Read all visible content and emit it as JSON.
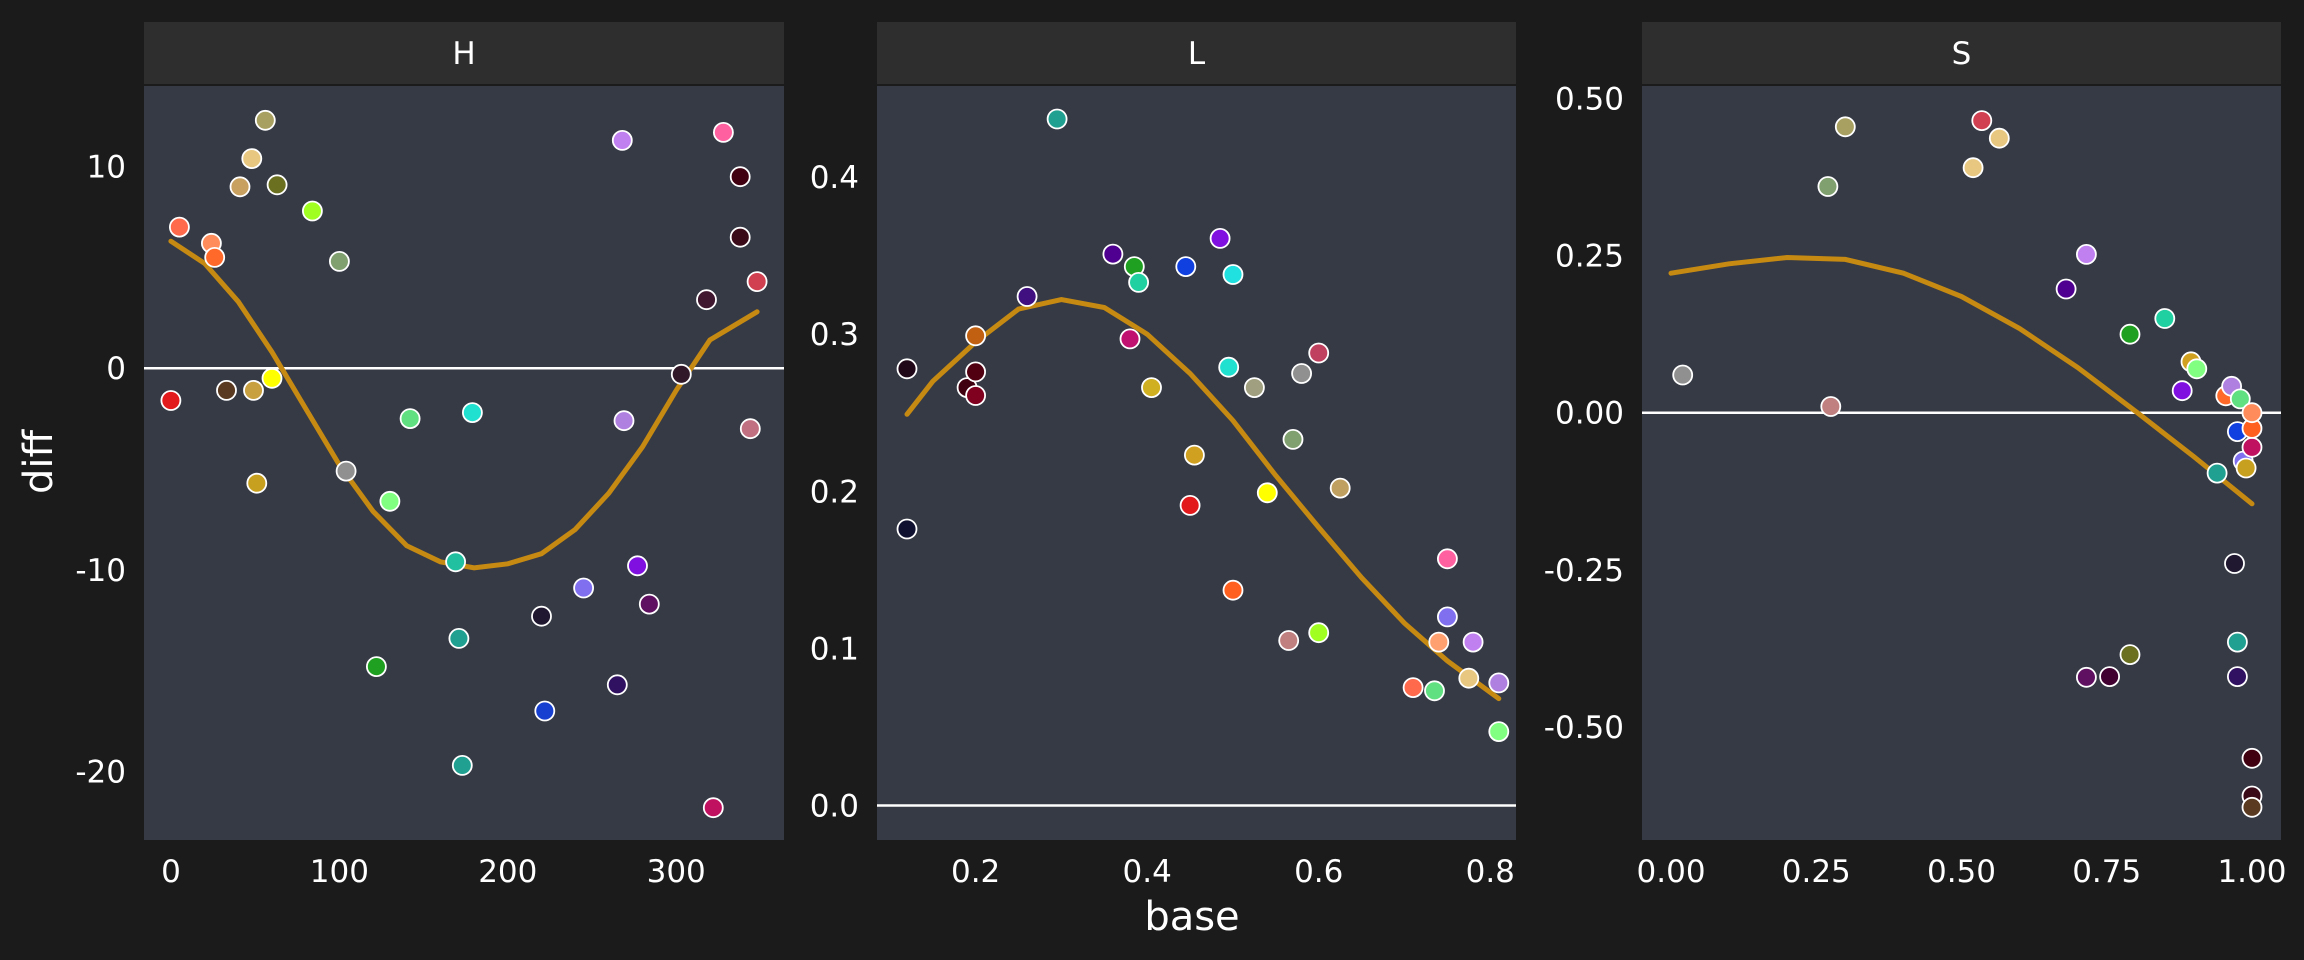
{
  "chart_data": {
    "type": "scatter",
    "xlabel": "base",
    "ylabel": "diff",
    "colors": {
      "background": "#1b1b1b",
      "panel": "#363a45",
      "strip": "#2e2e2e",
      "zero_line": "#ffffff",
      "smooth": "#c68a12",
      "point_stroke": "#ffffff"
    },
    "panels": [
      {
        "name": "H",
        "xlim": [
          -16,
          364
        ],
        "ylim": [
          -23.4,
          14
        ],
        "xticks": [
          0,
          100,
          200,
          300
        ],
        "xtick_labels": [
          "0",
          "100",
          "200",
          "300"
        ],
        "yticks": [
          -20,
          -10,
          0,
          10
        ],
        "ytick_labels": [
          "-20",
          "-10",
          "0",
          "10"
        ],
        "smooth": [
          [
            0,
            6.3
          ],
          [
            20,
            5.2
          ],
          [
            40,
            3.3
          ],
          [
            60,
            0.8
          ],
          [
            80,
            -2.0
          ],
          [
            100,
            -4.8
          ],
          [
            120,
            -7.1
          ],
          [
            140,
            -8.8
          ],
          [
            160,
            -9.6
          ],
          [
            180,
            -9.9
          ],
          [
            200,
            -9.7
          ],
          [
            220,
            -9.2
          ],
          [
            240,
            -8.0
          ],
          [
            260,
            -6.2
          ],
          [
            280,
            -3.9
          ],
          [
            300,
            -1.1
          ],
          [
            320,
            1.4
          ],
          [
            348,
            2.8
          ]
        ],
        "points": [
          [
            0,
            -1.6,
            "#e31a1c"
          ],
          [
            5,
            7,
            "#ff6a4d"
          ],
          [
            24,
            6.2,
            "#ff8c5a"
          ],
          [
            26,
            5.5,
            "#ff6a2a"
          ],
          [
            33,
            -1.1,
            "#5a3a20"
          ],
          [
            41,
            9,
            "#c8a060"
          ],
          [
            48,
            10.4,
            "#e8c880"
          ],
          [
            49,
            -1.1,
            "#c8a040"
          ],
          [
            51,
            -5.7,
            "#c8a020"
          ],
          [
            56,
            12.3,
            "#a8a060"
          ],
          [
            60,
            -0.5,
            "#ffff00"
          ],
          [
            63,
            9.1,
            "#6a7020"
          ],
          [
            84,
            7.8,
            "#a0ff20"
          ],
          [
            100,
            5.3,
            "#80a070"
          ],
          [
            104,
            -5.1,
            "#909090"
          ],
          [
            122,
            -14.8,
            "#20a020"
          ],
          [
            130,
            -6.6,
            "#80ff80"
          ],
          [
            142,
            -2.5,
            "#60e080"
          ],
          [
            169,
            -9.6,
            "#20c0a0"
          ],
          [
            171,
            -13.4,
            "#20a090"
          ],
          [
            173,
            -19.7,
            "#20a090"
          ],
          [
            179,
            -2.2,
            "#20e0d0"
          ],
          [
            220,
            -12.3,
            "#201830"
          ],
          [
            222,
            -17,
            "#1840d0"
          ],
          [
            245,
            -10.9,
            "#8070f0"
          ],
          [
            265,
            -15.7,
            "#301060"
          ],
          [
            268,
            11.3,
            "#c080f0"
          ],
          [
            269,
            -2.6,
            "#b080e0"
          ],
          [
            277,
            -9.8,
            "#8010e0"
          ],
          [
            284,
            -11.7,
            "#601060"
          ],
          [
            303,
            -0.3,
            "#301828"
          ],
          [
            318,
            3.4,
            "#401830"
          ],
          [
            322,
            -21.8,
            "#c01060"
          ],
          [
            328,
            11.7,
            "#ff60a0"
          ],
          [
            338,
            9.5,
            "#400010"
          ],
          [
            338,
            6.5,
            "#3a0a18"
          ],
          [
            344,
            -3.0,
            "#c07080"
          ],
          [
            348,
            4.3,
            "#d04050"
          ]
        ]
      },
      {
        "name": "L",
        "xlim": [
          0.085,
          0.83
        ],
        "ylim": [
          -0.022,
          0.458
        ],
        "xticks": [
          0.2,
          0.4,
          0.6,
          0.8
        ],
        "xtick_labels": [
          "0.2",
          "0.4",
          "0.6",
          "0.8"
        ],
        "yticks": [
          0.0,
          0.1,
          0.2,
          0.3,
          0.4
        ],
        "ytick_labels": [
          "0.0",
          "0.1",
          "0.2",
          "0.3",
          "0.4"
        ],
        "smooth": [
          [
            0.12,
            0.249
          ],
          [
            0.15,
            0.27
          ],
          [
            0.2,
            0.295
          ],
          [
            0.25,
            0.316
          ],
          [
            0.3,
            0.322
          ],
          [
            0.35,
            0.317
          ],
          [
            0.4,
            0.3
          ],
          [
            0.45,
            0.275
          ],
          [
            0.5,
            0.245
          ],
          [
            0.55,
            0.21
          ],
          [
            0.6,
            0.177
          ],
          [
            0.65,
            0.145
          ],
          [
            0.7,
            0.116
          ],
          [
            0.75,
            0.092
          ],
          [
            0.81,
            0.068
          ]
        ],
        "points": [
          [
            0.12,
            0.176,
            "#101030"
          ],
          [
            0.12,
            0.278,
            "#200818"
          ],
          [
            0.19,
            0.266,
            "#400010"
          ],
          [
            0.2,
            0.299,
            "#c06010"
          ],
          [
            0.2,
            0.261,
            "#800020"
          ],
          [
            0.2,
            0.276,
            "#500010"
          ],
          [
            0.26,
            0.324,
            "#401080"
          ],
          [
            0.295,
            0.437,
            "#20a090"
          ],
          [
            0.36,
            0.351,
            "#500090"
          ],
          [
            0.38,
            0.297,
            "#c01070"
          ],
          [
            0.385,
            0.343,
            "#20a020"
          ],
          [
            0.39,
            0.333,
            "#20d0a0"
          ],
          [
            0.405,
            0.266,
            "#d0b020"
          ],
          [
            0.445,
            0.343,
            "#1040e0"
          ],
          [
            0.45,
            0.191,
            "#e31a1c"
          ],
          [
            0.455,
            0.223,
            "#d0a020"
          ],
          [
            0.485,
            0.361,
            "#8010e0"
          ],
          [
            0.495,
            0.279,
            "#20e0d0"
          ],
          [
            0.5,
            0.338,
            "#20e0e0"
          ],
          [
            0.5,
            0.137,
            "#ff6020"
          ],
          [
            0.525,
            0.266,
            "#a0a080"
          ],
          [
            0.54,
            0.199,
            "#ffff00"
          ],
          [
            0.565,
            0.105,
            "#c08080"
          ],
          [
            0.57,
            0.233,
            "#80a070"
          ],
          [
            0.58,
            0.275,
            "#909090"
          ],
          [
            0.6,
            0.288,
            "#c04060"
          ],
          [
            0.6,
            0.11,
            "#a0ff20"
          ],
          [
            0.625,
            0.202,
            "#c0a060"
          ],
          [
            0.71,
            0.075,
            "#ff6a4d"
          ],
          [
            0.735,
            0.073,
            "#60e080"
          ],
          [
            0.74,
            0.104,
            "#ffa070"
          ],
          [
            0.75,
            0.157,
            "#ff60a0"
          ],
          [
            0.75,
            0.12,
            "#8070f0"
          ],
          [
            0.775,
            0.081,
            "#e8c880"
          ],
          [
            0.78,
            0.104,
            "#c080f0"
          ],
          [
            0.81,
            0.047,
            "#80ff80"
          ],
          [
            0.81,
            0.078,
            "#b080e0"
          ]
        ]
      },
      {
        "name": "S",
        "xlim": [
          -0.05,
          1.05
        ],
        "ylim": [
          -0.68,
          0.52
        ],
        "xticks": [
          0.0,
          0.25,
          0.5,
          0.75,
          1.0
        ],
        "xtick_labels": [
          "0.00",
          "0.25",
          "0.50",
          "0.75",
          "1.00"
        ],
        "yticks": [
          -0.5,
          -0.25,
          0.0,
          0.25,
          0.5
        ],
        "ytick_labels": [
          "-0.50",
          "-0.25",
          "0.00",
          "0.25",
          "0.50"
        ],
        "smooth": [
          [
            0,
            0.222
          ],
          [
            0.1,
            0.237
          ],
          [
            0.2,
            0.247
          ],
          [
            0.3,
            0.244
          ],
          [
            0.4,
            0.222
          ],
          [
            0.5,
            0.185
          ],
          [
            0.6,
            0.134
          ],
          [
            0.7,
            0.072
          ],
          [
            0.8,
            0.002
          ],
          [
            0.9,
            -0.07
          ],
          [
            1.0,
            -0.145
          ]
        ],
        "points": [
          [
            0.02,
            0.06,
            "#909090"
          ],
          [
            0.27,
            0.36,
            "#80a070"
          ],
          [
            0.275,
            0.01,
            "#c08080"
          ],
          [
            0.3,
            0.455,
            "#a8a060"
          ],
          [
            0.52,
            0.39,
            "#e8c880"
          ],
          [
            0.535,
            0.465,
            "#d04050"
          ],
          [
            0.565,
            0.437,
            "#e8c880"
          ],
          [
            0.68,
            0.197,
            "#500090"
          ],
          [
            0.715,
            0.252,
            "#c080f0"
          ],
          [
            0.715,
            -0.421,
            "#601060"
          ],
          [
            0.755,
            -0.42,
            "#400030"
          ],
          [
            0.79,
            -0.385,
            "#6a7020"
          ],
          [
            0.79,
            0.125,
            "#20a020"
          ],
          [
            0.85,
            0.15,
            "#20d0a0"
          ],
          [
            0.88,
            0.035,
            "#8010e0"
          ],
          [
            0.895,
            0.081,
            "#d0a020"
          ],
          [
            0.905,
            0.07,
            "#80ff80"
          ],
          [
            0.94,
            -0.096,
            "#20a090"
          ],
          [
            0.955,
            0.027,
            "#ff6a2a"
          ],
          [
            0.965,
            0.042,
            "#b080e0"
          ],
          [
            0.97,
            -0.24,
            "#201830"
          ],
          [
            0.975,
            -0.365,
            "#20a090"
          ],
          [
            0.975,
            -0.42,
            "#301060"
          ],
          [
            0.975,
            -0.03,
            "#1040e0"
          ],
          [
            0.98,
            0.022,
            "#60e080"
          ],
          [
            0.985,
            -0.077,
            "#8070f0"
          ],
          [
            0.99,
            -0.088,
            "#c8a020"
          ],
          [
            1.0,
            -0.055,
            "#c01060"
          ],
          [
            1.0,
            -0.55,
            "#400010"
          ],
          [
            1.0,
            -0.61,
            "#3a0a18"
          ],
          [
            1.0,
            -0.628,
            "#5a3a20"
          ],
          [
            1.0,
            -0.025,
            "#ff6020"
          ],
          [
            1.0,
            0.0,
            "#ff8c5a"
          ]
        ]
      }
    ]
  }
}
